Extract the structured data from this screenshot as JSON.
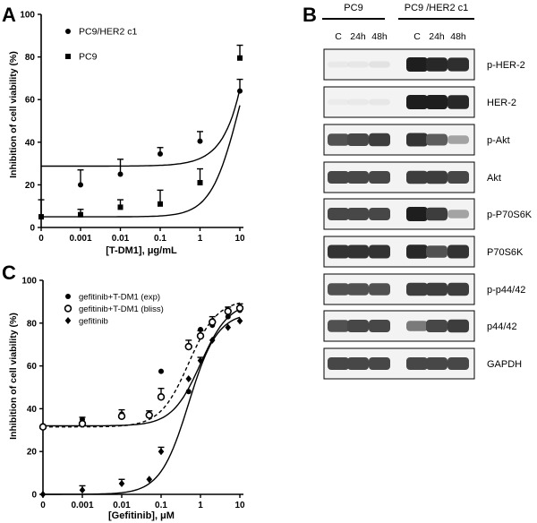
{
  "panels": {
    "A": {
      "letter": "A",
      "chart_data": {
        "type": "scatter",
        "ylabel": "Inhibition of cell viability (%)",
        "xlabel": "[T-DM1], μg/mL",
        "xscale": "log-with-zero",
        "x_ticks": [
          "0",
          "0.001",
          "0.01",
          "0.1",
          "1",
          "10"
        ],
        "ylim": [
          0,
          100
        ],
        "y_ticks": [
          "0",
          "20",
          "40",
          "60",
          "80",
          "100"
        ],
        "legend_placement": "top-left",
        "series": [
          {
            "name": "PC9/HER2 c1",
            "marker": "circle",
            "x": [
              0.001,
              0.01,
              0.1,
              1,
              10
            ],
            "y": [
              20,
              25,
              34.5,
              40.5,
              64
            ],
            "err": [
              7,
              7,
              3,
              4.5,
              5.5
            ],
            "fit": "linear"
          },
          {
            "name": "PC9",
            "marker": "square",
            "x": [
              0,
              0.001,
              0.01,
              0.1,
              1,
              10
            ],
            "y": [
              5,
              6,
              9.5,
              11,
              21,
              79.5
            ],
            "err": [
              8,
              2.5,
              3.5,
              6.5,
              6.5,
              6
            ],
            "fit": "sigmoid"
          }
        ]
      }
    },
    "B": {
      "letter": "B",
      "groups": [
        "PC9",
        "PC9 /HER2 c1"
      ],
      "lanes": [
        "C",
        "24h",
        "48h",
        "C",
        "24h",
        "48h"
      ],
      "blots": [
        {
          "label": "p-HER-2",
          "intensity": [
            0.06,
            0.08,
            0.12,
            1.0,
            0.95,
            0.92
          ]
        },
        {
          "label": "HER-2",
          "intensity": [
            0.04,
            0.06,
            0.08,
            1.0,
            1.0,
            0.95
          ]
        },
        {
          "label": "p-Akt",
          "intensity": [
            0.75,
            0.8,
            0.85,
            0.9,
            0.7,
            0.35
          ]
        },
        {
          "label": "Akt",
          "intensity": [
            0.8,
            0.8,
            0.8,
            0.85,
            0.85,
            0.8
          ]
        },
        {
          "label": "p-P70S6K",
          "intensity": [
            0.8,
            0.8,
            0.8,
            1.0,
            0.85,
            0.35
          ]
        },
        {
          "label": "P70S6K",
          "intensity": [
            0.9,
            0.9,
            0.9,
            0.95,
            0.75,
            0.9
          ]
        },
        {
          "label": "p-p44/42",
          "intensity": [
            0.75,
            0.75,
            0.75,
            0.85,
            0.85,
            0.85
          ]
        },
        {
          "label": "p44/42",
          "intensity": [
            0.75,
            0.8,
            0.8,
            0.55,
            0.8,
            0.85
          ]
        },
        {
          "label": "GAPDH",
          "intensity": [
            0.8,
            0.8,
            0.8,
            0.8,
            0.8,
            0.8
          ]
        }
      ]
    },
    "C": {
      "letter": "C",
      "chart_data": {
        "type": "scatter",
        "ylabel": "Inhibition of cell viability (%)",
        "xlabel": "[Gefitinib], μM",
        "xscale": "log-with-zero",
        "x_ticks": [
          "0",
          "0.001",
          "0.01",
          "0.1",
          "1",
          "10"
        ],
        "ylim": [
          0,
          100
        ],
        "y_ticks": [
          "0",
          "20",
          "40",
          "60",
          "80",
          "100"
        ],
        "legend_placement": "top-left",
        "series": [
          {
            "name": "gefitinib+T-DM1 (exp)",
            "marker": "circle",
            "x": [
              0,
              0.001,
              0.01,
              0.1,
              0.5,
              1,
              2,
              5,
              10
            ],
            "y": [
              32,
              35,
              37.5,
              57.5,
              48,
              77,
              79,
              83,
              86
            ],
            "err": [
              0,
              0,
              0,
              0,
              0,
              0,
              0,
              0,
              0
            ],
            "fit": "sigmoid-solid"
          },
          {
            "name": "gefitinib+T-DM1 (bliss)",
            "marker": "open-circle",
            "x": [
              0,
              0.001,
              0.01,
              0.05,
              0.1,
              0.5,
              1,
              2,
              5,
              10
            ],
            "y": [
              31.5,
              33,
              36.5,
              37,
              45.5,
              69,
              74,
              80.5,
              85.5,
              87
            ],
            "err": [
              0,
              3,
              3,
              2,
              4,
              3,
              2.5,
              2.5,
              2,
              2
            ],
            "fit": "sigmoid-dashed"
          },
          {
            "name": "gefitinib",
            "marker": "diamond",
            "x": [
              0,
              0.001,
              0.01,
              0.05,
              0.1,
              0.5,
              1,
              2,
              5,
              10
            ],
            "y": [
              0,
              2,
              5,
              7,
              20,
              54,
              62.5,
              72,
              78,
              81
            ],
            "err": [
              0,
              2,
              2,
              0,
              2,
              0,
              1.5,
              0,
              0,
              0
            ],
            "fit": "sigmoid-solid"
          }
        ]
      }
    }
  }
}
